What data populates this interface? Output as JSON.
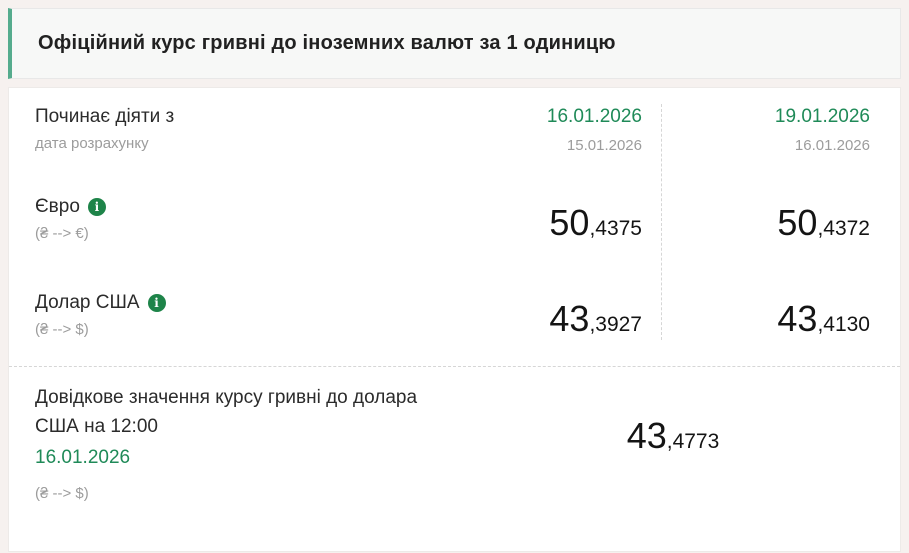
{
  "header": {
    "title": "Офіційний курс гривні до іноземних валют за 1 одиницю"
  },
  "effective": {
    "label": "Починає діяти з",
    "sublabel": "дата розрахунку",
    "col1": {
      "effective_date": "16.01.2026",
      "calc_date": "15.01.2026"
    },
    "col2": {
      "effective_date": "19.01.2026",
      "calc_date": "16.01.2026"
    }
  },
  "rows": [
    {
      "currency": "Євро",
      "pair": "(₴ --> €)",
      "info_icon": "i",
      "values": [
        {
          "int": "50",
          "dec": ",4375"
        },
        {
          "int": "50",
          "dec": ",4372"
        }
      ]
    },
    {
      "currency": "Долар США",
      "pair": "(₴ --> $)",
      "info_icon": "i",
      "values": [
        {
          "int": "43",
          "dec": ",3927"
        },
        {
          "int": "43",
          "dec": ",4130"
        }
      ]
    }
  ],
  "reference": {
    "label": "Довідкове значення курсу гривні до долара США на 12:00",
    "date": "16.01.2026",
    "pair": "(₴ --> $)",
    "value": {
      "int": "43",
      "dec": ",4773"
    }
  },
  "colors": {
    "accent_green": "#1f8a58",
    "info_icon_green": "#1e8449",
    "header_border_teal": "#55ab8d",
    "muted_gray": "#9c9c9c",
    "page_background": "#f6f1ef"
  }
}
